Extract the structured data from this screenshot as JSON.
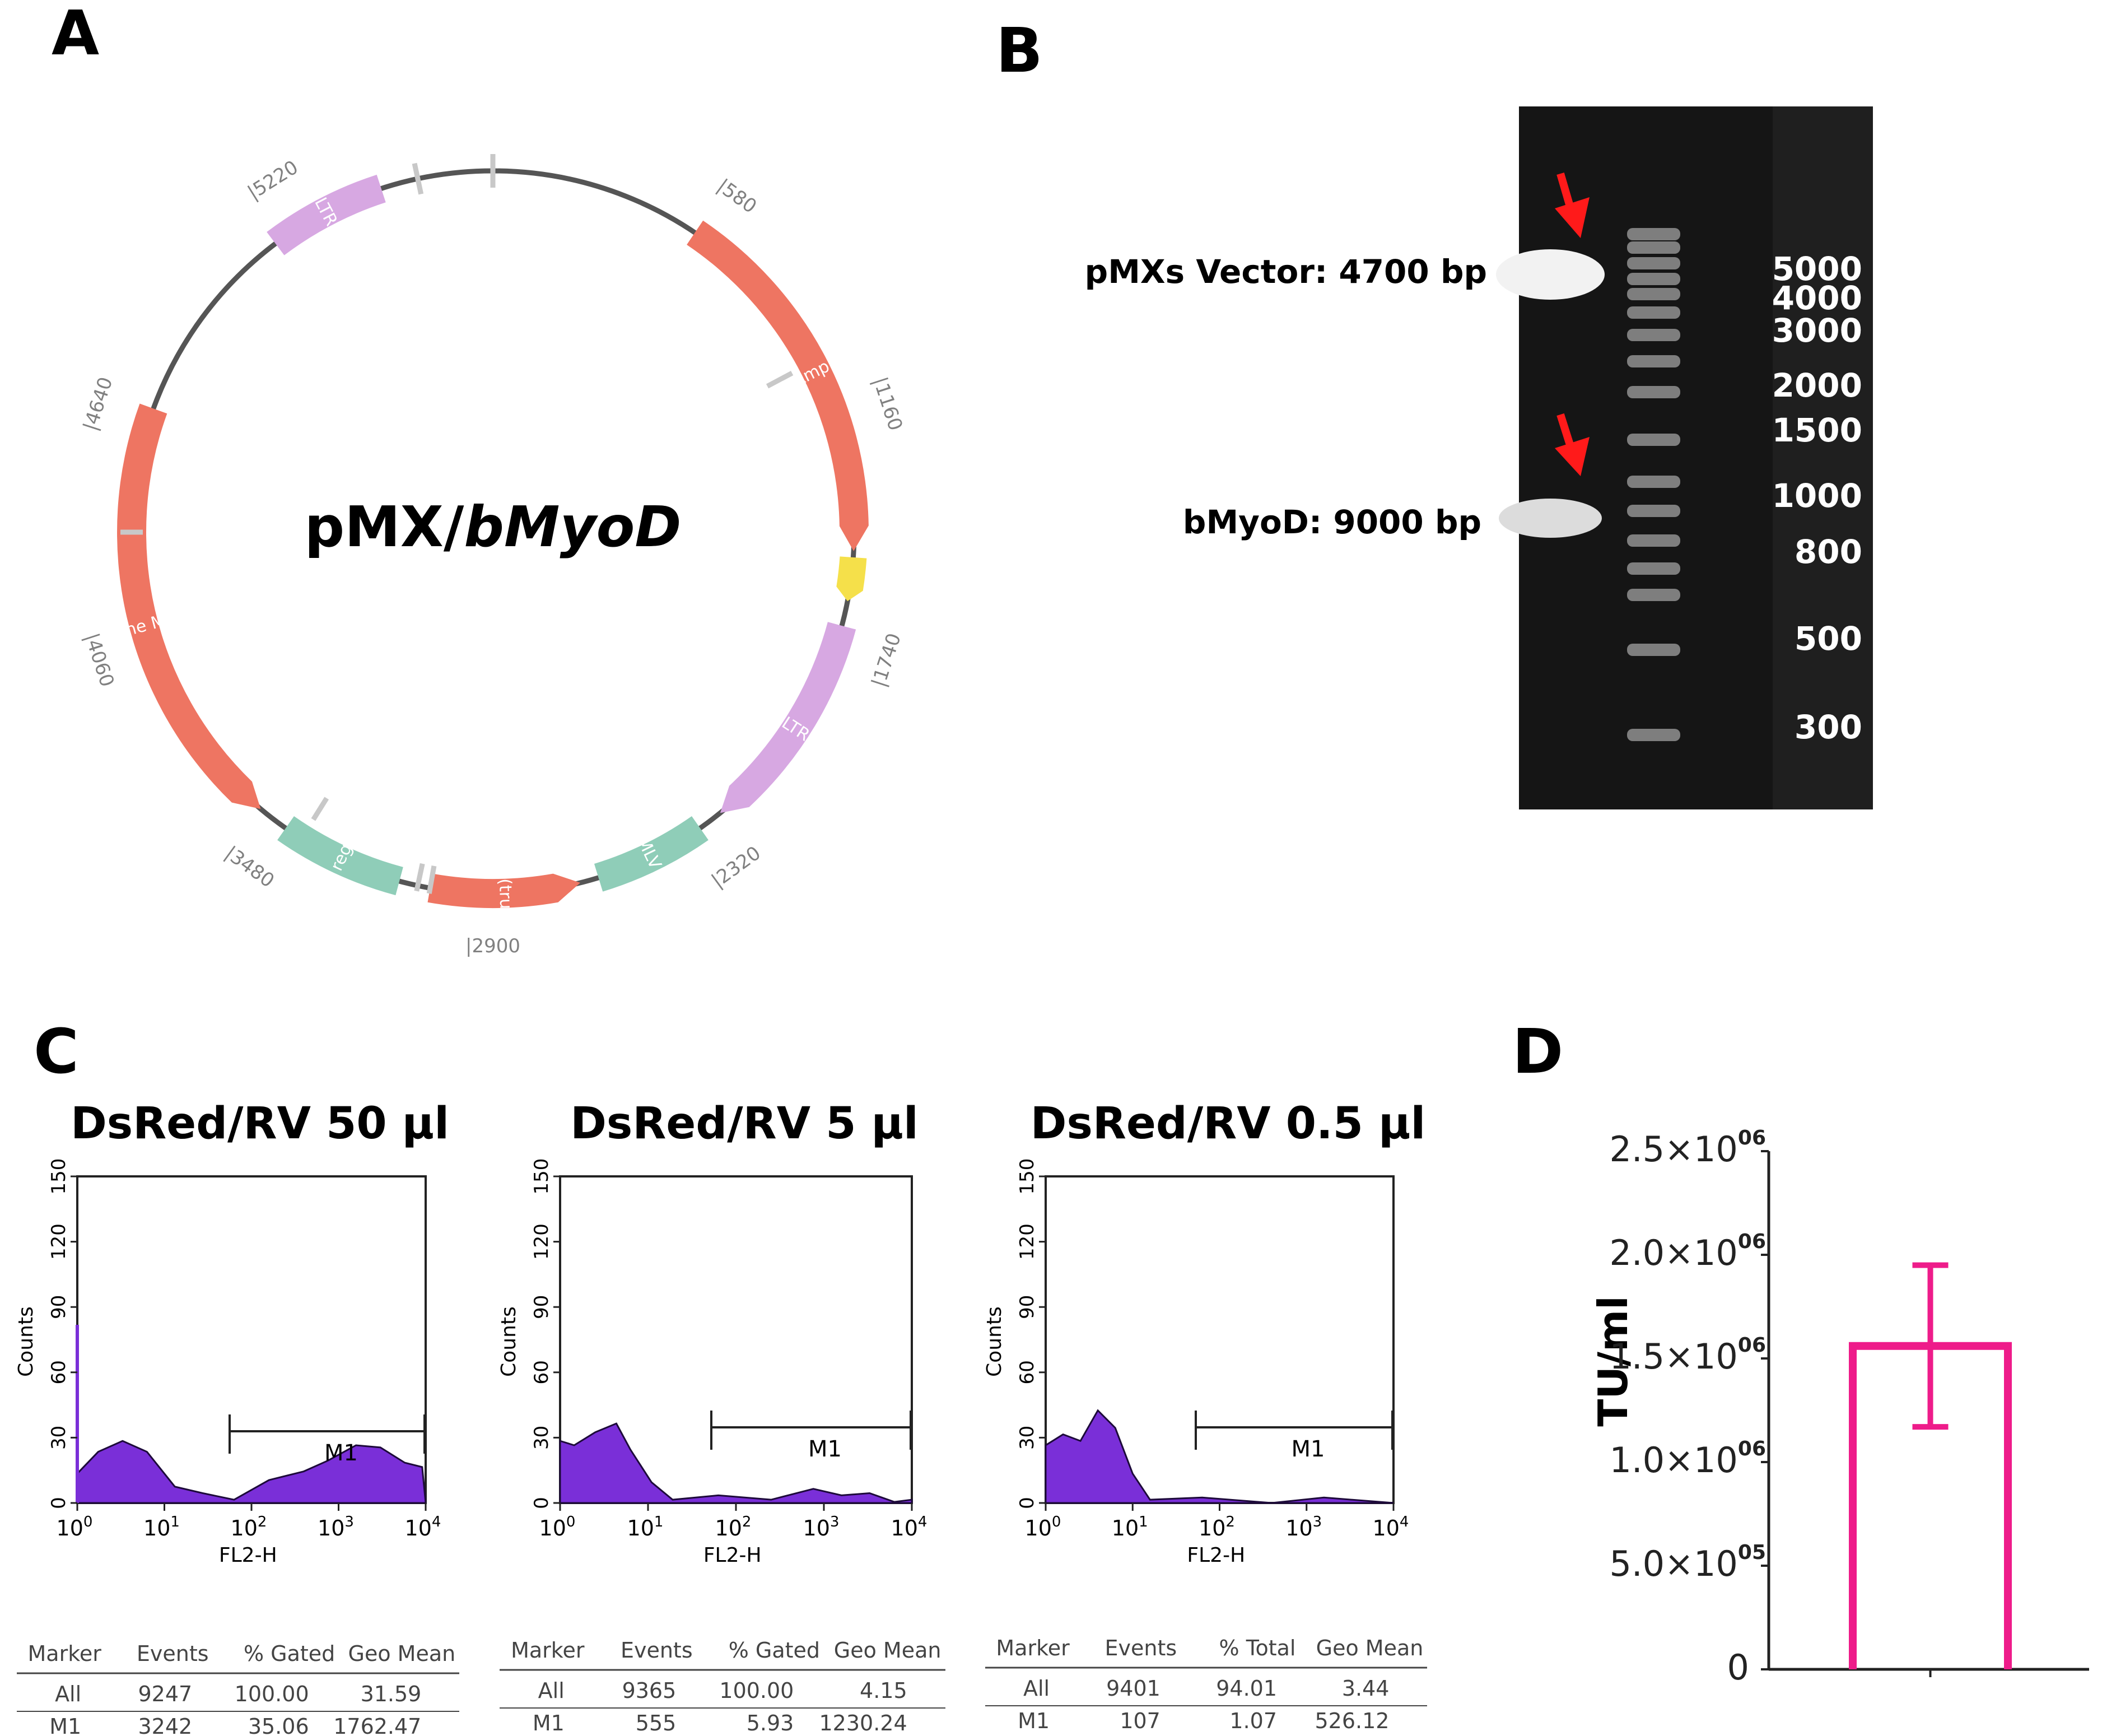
{
  "panels": {
    "a": "A",
    "b": "B",
    "c": "C",
    "d": "D"
  },
  "plasmid": {
    "title_plain": "pMX/",
    "title_italic": "bMyoD",
    "position_labels": [
      "5220",
      "580",
      "1160",
      "1740",
      "2320",
      "2900",
      "3480",
      "4060",
      "4640"
    ],
    "features": [
      {
        "label": "LTR",
        "color": "#d7a8e2"
      },
      {
        "label": "AmpR",
        "color": "#ee7562"
      },
      {
        "label": "LTR",
        "color": "#d7a8e2"
      },
      {
        "label": "MMLV Ps",
        "color": "#8fcdb8"
      },
      {
        "label": "gag (trunc...",
        "color": "#ee7562"
      },
      {
        "label": "pol region",
        "color": "#8fcdb8"
      },
      {
        "label": "Bovine MyoD",
        "color": "#ee7562"
      }
    ],
    "yellow_feature_color": "#f5e04a"
  },
  "gel": {
    "band_labels": [
      "pMXs Vector: 4700 bp",
      "bMyoD: 9000 bp"
    ],
    "ladder": [
      "5000",
      "4000",
      "3000",
      "2000",
      "1500",
      "1000",
      "800",
      "500",
      "300"
    ],
    "arrow_color": "#ff1a1a"
  },
  "flow": {
    "ylabel": "Counts",
    "xlabel": "FL2-H",
    "gate_label": "M1",
    "y_ticks": [
      "0",
      "30",
      "60",
      "90",
      "120",
      "150"
    ],
    "x_tick_base": "10",
    "x_tick_exps": [
      "0",
      "1",
      "2",
      "3",
      "4"
    ],
    "histogram_color": "#7a2fd8",
    "panels": [
      {
        "title": "DsRed/RV 50 µl",
        "table": {
          "headers": [
            "Marker",
            "Events",
            "% Gated",
            "Geo Mean"
          ],
          "rows": [
            [
              "All",
              "9247",
              "100.00",
              "31.59"
            ],
            [
              "M1",
              "3242",
              "35.06",
              "1762.47"
            ]
          ]
        }
      },
      {
        "title": "DsRed/RV 5 µl",
        "table": {
          "headers": [
            "Marker",
            "Events",
            "% Gated",
            "Geo Mean"
          ],
          "rows": [
            [
              "All",
              "9365",
              "100.00",
              "4.15"
            ],
            [
              "M1",
              "555",
              "5.93",
              "1230.24"
            ]
          ]
        }
      },
      {
        "title": "DsRed/RV 0.5 µl",
        "table": {
          "headers": [
            "Marker",
            "Events",
            "% Total",
            "Geo Mean"
          ],
          "rows": [
            [
              "All",
              "9401",
              "94.01",
              "3.44"
            ],
            [
              "M1",
              "107",
              "1.07",
              "526.12"
            ]
          ]
        }
      }
    ]
  },
  "chart_data": {
    "type": "bar",
    "title": "",
    "xlabel": "",
    "ylabel": "TU/ml",
    "categories": [
      ""
    ],
    "values": [
      1560000
    ],
    "error": [
      390000
    ],
    "ylim": [
      0,
      2500000
    ],
    "y_ticks": [
      {
        "value": 0,
        "mantissa": "0",
        "exp": ""
      },
      {
        "value": 500000,
        "mantissa": "5.0×10",
        "exp": "05"
      },
      {
        "value": 1000000,
        "mantissa": "1.0×10",
        "exp": "06"
      },
      {
        "value": 1500000,
        "mantissa": "1.5×10",
        "exp": "06"
      },
      {
        "value": 2000000,
        "mantissa": "2.0×10",
        "exp": "06"
      },
      {
        "value": 2500000,
        "mantissa": "2.5×10",
        "exp": "06"
      }
    ],
    "bar_color": "#ee1c8a"
  }
}
